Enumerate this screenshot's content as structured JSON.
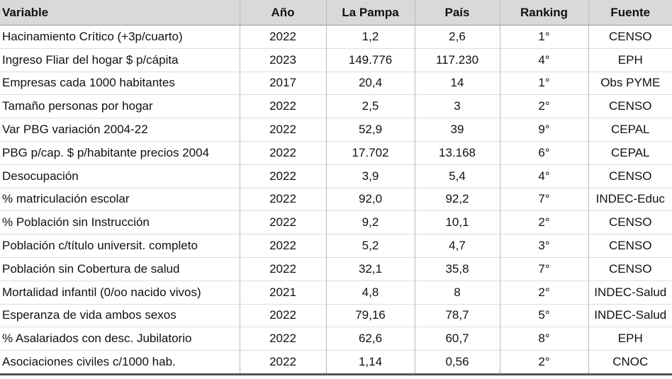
{
  "table": {
    "header": [
      "Variable",
      "Año",
      "La Pampa",
      "País",
      "Ranking",
      "Fuente"
    ],
    "rows": [
      [
        "Hacinamiento Crítico (+3p/cuarto)",
        "2022",
        "1,2",
        "2,6",
        "1°",
        "CENSO"
      ],
      [
        "Ingreso Fliar del hogar $ p/cápita",
        "2023",
        "149.776",
        "117.230",
        "4°",
        "EPH"
      ],
      [
        "Empresas cada 1000 habitantes",
        "2017",
        "20,4",
        "14",
        "1°",
        "Obs PYME"
      ],
      [
        "Tamaño personas por hogar",
        "2022",
        "2,5",
        "3",
        "2°",
        "CENSO"
      ],
      [
        "Var PBG variación 2004-22",
        "2022",
        "52,9",
        "39",
        "9°",
        "CEPAL"
      ],
      [
        "PBG p/cap. $ p/habitante precios 2004",
        "2022",
        "17.702",
        "13.168",
        "6°",
        "CEPAL"
      ],
      [
        "Desocupación",
        "2022",
        "3,9",
        "5,4",
        "4°",
        "CENSO"
      ],
      [
        "% matriculación escolar",
        "2022",
        "92,0",
        "92,2",
        "7°",
        "INDEC-Educ"
      ],
      [
        "% Población sin Instrucción",
        "2022",
        "9,2",
        "10,1",
        "2°",
        "CENSO"
      ],
      [
        "Población c/título universit. completo",
        "2022",
        "5,2",
        "4,7",
        "3°",
        "CENSO"
      ],
      [
        "Población sin Cobertura de salud",
        "2022",
        "32,1",
        "35,8",
        "7°",
        "CENSO"
      ],
      [
        "Mortalidad infantil (0/oo nacido vivos)",
        "2021",
        "4,8",
        "8",
        "2°",
        "INDEC-Salud"
      ],
      [
        "Esperanza de vida ambos sexos",
        "2022",
        "79,16",
        "78,7",
        "5°",
        "INDEC-Salud"
      ],
      [
        "% Asalariados con desc. Jubilatorio",
        "2022",
        "62,6",
        "60,7",
        "8°",
        "EPH"
      ],
      [
        "Asociaciones civiles c/1000 hab.",
        "2022",
        "1,14",
        "0,56",
        "2°",
        "CNOC"
      ]
    ]
  }
}
